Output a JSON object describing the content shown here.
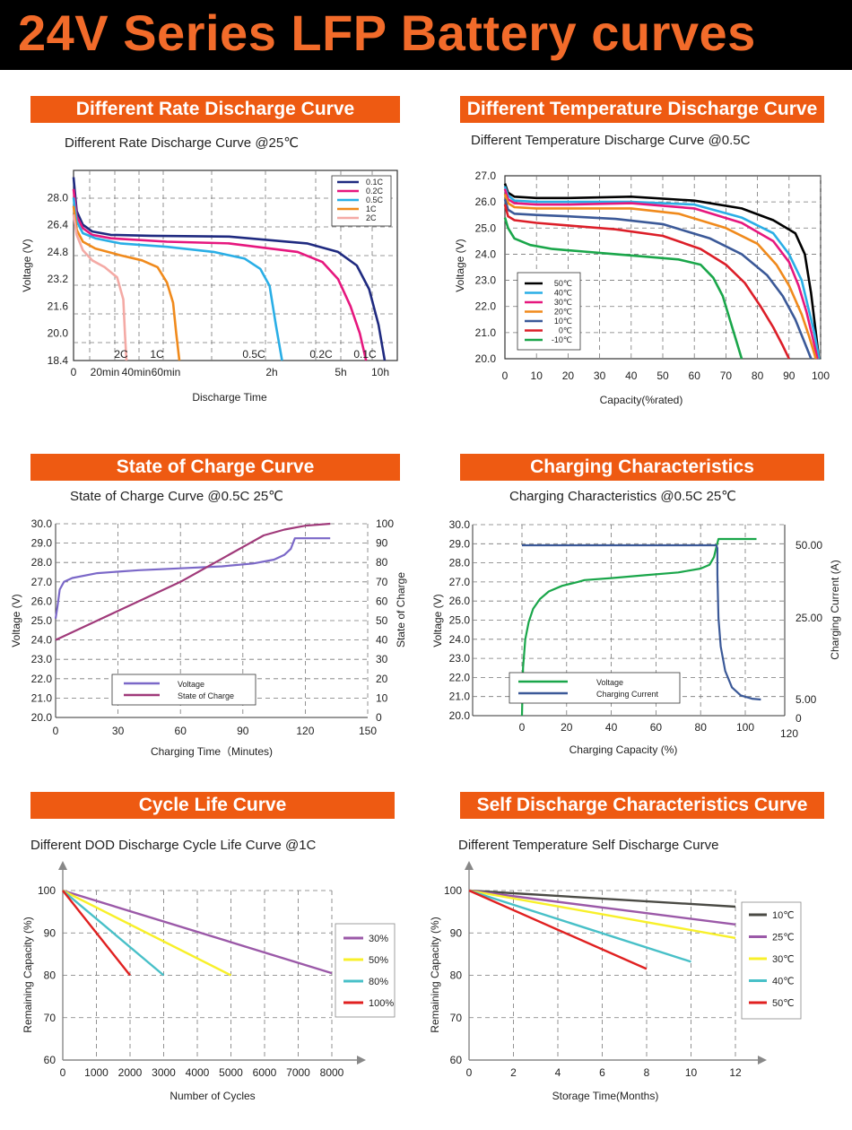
{
  "page_title": "24V Series LFP Battery curves",
  "chart_data": [
    {
      "id": "c1",
      "type": "line",
      "header": "Different Rate Discharge Curve",
      "title": "Different Rate Discharge Curve @25℃",
      "xlabel": "Discharge Time",
      "ylabel": "Voltage (V)",
      "ylim": [
        18.4,
        29.6
      ],
      "yticks": [
        "28.0",
        "26.4",
        "24.8",
        "23.2",
        "21.6",
        "20.0",
        "18.4"
      ],
      "xticks": [
        "0",
        "20min",
        "40min",
        "60min",
        "2h",
        "5h",
        "10h"
      ],
      "annotations": [
        "2C",
        "1C",
        "0.5C",
        "0.2C",
        "0.1C"
      ],
      "grid": true,
      "legend_position": "top-right",
      "series": [
        {
          "name": "0.1C",
          "color": "#1f2a80",
          "x": [
            0,
            0.01,
            0.03,
            0.06,
            0.12,
            0.25,
            0.5,
            0.75,
            0.85,
            0.91,
            0.95,
            0.98,
            1.0
          ],
          "y": [
            29.2,
            27.2,
            26.4,
            26.0,
            25.8,
            25.75,
            25.7,
            25.3,
            24.8,
            24.0,
            22.6,
            20.5,
            18.4
          ]
        },
        {
          "name": "0.2C",
          "color": "#e6177e",
          "x": [
            0,
            0.01,
            0.03,
            0.06,
            0.12,
            0.3,
            0.5,
            0.72,
            0.8,
            0.85,
            0.89,
            0.92,
            0.94
          ],
          "y": [
            28.5,
            26.9,
            26.2,
            25.8,
            25.6,
            25.4,
            25.3,
            24.8,
            24.2,
            23.2,
            21.6,
            20.0,
            18.4
          ]
        },
        {
          "name": "0.5C",
          "color": "#29aee6",
          "x": [
            0,
            0.01,
            0.03,
            0.07,
            0.15,
            0.3,
            0.45,
            0.55,
            0.6,
            0.63,
            0.65,
            0.67
          ],
          "y": [
            28.0,
            26.6,
            25.9,
            25.6,
            25.3,
            25.1,
            24.8,
            24.4,
            23.8,
            22.8,
            20.5,
            18.4
          ]
        },
        {
          "name": "1C",
          "color": "#f08a1c",
          "x": [
            0,
            0.01,
            0.03,
            0.07,
            0.15,
            0.22,
            0.27,
            0.3,
            0.32,
            0.33,
            0.34
          ],
          "y": [
            27.5,
            26.1,
            25.4,
            25.0,
            24.6,
            24.3,
            23.9,
            23.0,
            21.8,
            20.0,
            18.4
          ]
        },
        {
          "name": "2C",
          "color": "#f4aaa5",
          "x": [
            0,
            0.01,
            0.03,
            0.06,
            0.1,
            0.14,
            0.16,
            0.165,
            0.17
          ],
          "y": [
            27.0,
            25.8,
            24.9,
            24.3,
            23.9,
            23.3,
            22.0,
            20.0,
            18.4
          ]
        }
      ]
    },
    {
      "id": "c2",
      "type": "line",
      "header": "Different Temperature Discharge Curve",
      "title": "Different Temperature Discharge Curve @0.5C",
      "xlabel": "Capacity(%rated)",
      "ylabel": "Voltage (V)",
      "xlim": [
        0,
        100
      ],
      "ylim": [
        20.0,
        27.0
      ],
      "yticks": [
        "27.0",
        "26.0",
        "25.0",
        "24.0",
        "23.0",
        "22.0",
        "21.0",
        "20.0"
      ],
      "xticks": [
        "0",
        "10",
        "20",
        "30",
        "40",
        "50",
        "60",
        "70",
        "80",
        "90",
        "100"
      ],
      "grid": true,
      "legend_position": "bottom-left",
      "series": [
        {
          "name": "50℃",
          "color": "#000000",
          "x": [
            0,
            1,
            3,
            10,
            20,
            40,
            60,
            75,
            85,
            92,
            95,
            97,
            98.5,
            99.5
          ],
          "y": [
            26.7,
            26.35,
            26.2,
            26.15,
            26.15,
            26.2,
            26.05,
            25.75,
            25.3,
            24.8,
            24.0,
            22.5,
            21.0,
            20.0
          ]
        },
        {
          "name": "40℃",
          "color": "#29aee6",
          "x": [
            0,
            1,
            3,
            10,
            20,
            40,
            60,
            75,
            85,
            90,
            94,
            96,
            98,
            99.5
          ],
          "y": [
            26.6,
            26.25,
            26.05,
            26.0,
            26.0,
            26.0,
            25.9,
            25.4,
            24.8,
            24.0,
            23.0,
            22.0,
            21.0,
            20.0
          ]
        },
        {
          "name": "30℃",
          "color": "#e6177e",
          "x": [
            0,
            1,
            3,
            10,
            20,
            40,
            60,
            75,
            85,
            90,
            93,
            95.5,
            97.5,
            99
          ],
          "y": [
            26.5,
            26.1,
            25.95,
            25.9,
            25.9,
            25.95,
            25.75,
            25.2,
            24.5,
            23.7,
            22.8,
            21.8,
            20.8,
            20.0
          ]
        },
        {
          "name": "20℃",
          "color": "#f08a1c",
          "x": [
            0,
            1,
            3,
            10,
            20,
            40,
            55,
            70,
            80,
            86,
            90,
            94,
            96.5,
            98.5
          ],
          "y": [
            26.3,
            25.95,
            25.8,
            25.75,
            25.75,
            25.75,
            25.55,
            25.0,
            24.4,
            23.6,
            22.8,
            21.7,
            20.8,
            20.0
          ]
        },
        {
          "name": "10℃",
          "color": "#3b5998",
          "x": [
            0,
            1,
            3,
            10,
            20,
            35,
            50,
            65,
            75,
            83,
            88,
            92,
            95,
            97
          ],
          "y": [
            26.1,
            25.7,
            25.55,
            25.5,
            25.45,
            25.35,
            25.15,
            24.6,
            24.0,
            23.2,
            22.4,
            21.5,
            20.6,
            20.0
          ]
        },
        {
          "name": "0℃",
          "color": "#dc1e28",
          "x": [
            0,
            1,
            3,
            10,
            20,
            35,
            50,
            62,
            70,
            76,
            81,
            85,
            88,
            90
          ],
          "y": [
            25.9,
            25.45,
            25.3,
            25.2,
            25.1,
            24.95,
            24.7,
            24.2,
            23.6,
            22.9,
            22.0,
            21.2,
            20.5,
            20.0
          ]
        },
        {
          "name": "-10℃",
          "color": "#1aa64a",
          "x": [
            0,
            1,
            3,
            8,
            15,
            25,
            35,
            45,
            55,
            62,
            66,
            69,
            71,
            73,
            75
          ],
          "y": [
            25.4,
            25.0,
            24.6,
            24.35,
            24.2,
            24.1,
            24.0,
            23.9,
            23.8,
            23.6,
            23.1,
            22.4,
            21.6,
            20.8,
            20.0
          ]
        }
      ]
    },
    {
      "id": "c3",
      "type": "line",
      "header": "State of Charge Curve",
      "title": "State of Charge Curve @0.5C 25℃",
      "xlabel": "Charging Time（Minutes)",
      "ylabel": "Voltage (V)",
      "y2label": "State of Charge",
      "xlim": [
        0,
        150
      ],
      "ylim": [
        20.0,
        30.0
      ],
      "y2lim": [
        0,
        100
      ],
      "yticks": [
        "30.0",
        "29.0",
        "28.0",
        "27.0",
        "26.0",
        "25.0",
        "24.0",
        "23.0",
        "22.0",
        "21.0",
        "20.0"
      ],
      "y2ticks": [
        "100",
        "90",
        "80",
        "70",
        "60",
        "50",
        "40",
        "30",
        "20",
        "10",
        "0"
      ],
      "xticks": [
        "0",
        "30",
        "60",
        "90",
        "120",
        "150"
      ],
      "grid": true,
      "legend_position": "bottom-center",
      "series": [
        {
          "name": "Voltage",
          "color": "#7b68c8",
          "axis": "left",
          "x": [
            0,
            1,
            2,
            4,
            8,
            20,
            40,
            60,
            80,
            95,
            105,
            110,
            113,
            115,
            118,
            132
          ],
          "y": [
            25.1,
            25.8,
            26.6,
            27.0,
            27.2,
            27.45,
            27.6,
            27.7,
            27.8,
            27.95,
            28.15,
            28.4,
            28.7,
            29.25,
            29.25,
            29.25
          ]
        },
        {
          "name": "State of Charge",
          "color": "#a03a7a",
          "axis": "right",
          "x": [
            0,
            20,
            40,
            60,
            80,
            90,
            100,
            110,
            120,
            132
          ],
          "y": [
            40,
            50,
            60,
            70,
            82,
            88,
            94,
            97,
            99,
            100
          ]
        }
      ]
    },
    {
      "id": "c4",
      "type": "line",
      "header": "Charging Characteristics",
      "title": "Charging Characteristics @0.5C 25℃",
      "xlabel": "Charging Capacity (%)",
      "ylabel": "Voltage (V)",
      "y2label": "Charging Current (A)",
      "xlim": [
        -8,
        120
      ],
      "ylim": [
        20.0,
        30.0
      ],
      "yticks": [
        "30.0",
        "29.0",
        "28.0",
        "27.0",
        "26.0",
        "25.0",
        "24.0",
        "23.0",
        "22.0",
        "21.0",
        "20.0"
      ],
      "y2ticks": [
        "50.00",
        "25.00",
        "5.00",
        "0"
      ],
      "xticks": [
        "0",
        "20",
        "40",
        "60",
        "80",
        "100",
        "120"
      ],
      "grid": true,
      "legend_position": "bottom-center",
      "series": [
        {
          "name": "Voltage",
          "color": "#1aa64a",
          "axis": "left",
          "x": [
            0,
            0.5,
            1.5,
            3,
            5,
            8,
            12,
            18,
            25,
            28,
            40,
            55,
            70,
            80,
            84,
            86,
            87,
            88,
            90,
            105
          ],
          "y": [
            20.0,
            22.5,
            24.0,
            24.9,
            25.6,
            26.1,
            26.5,
            26.8,
            27.0,
            27.1,
            27.2,
            27.35,
            27.5,
            27.7,
            27.9,
            28.3,
            28.8,
            29.25,
            29.25,
            29.25
          ]
        },
        {
          "name": "Charging Current",
          "color": "#3b5998",
          "axis": "right",
          "x": [
            0,
            20,
            40,
            60,
            80,
            87,
            87.5,
            87.5,
            88,
            89,
            91,
            94,
            98,
            103,
            107
          ],
          "y": [
            50,
            50,
            50,
            50,
            50,
            50,
            49,
            40,
            25,
            18,
            12,
            8,
            6,
            5.2,
            5
          ]
        }
      ]
    },
    {
      "id": "c5",
      "type": "line",
      "header": "Cycle Life Curve",
      "title": "Different DOD Discharge Cycle Life Curve @1C",
      "xlabel": "Number of Cycles",
      "ylabel": "Remaining Capacity (%)",
      "xlim": [
        0,
        8000
      ],
      "ylim": [
        60,
        100
      ],
      "yticks": [
        "100",
        "90",
        "80",
        "70",
        "60"
      ],
      "xticks": [
        "0",
        "1000",
        "2000",
        "3000",
        "4000",
        "5000",
        "6000",
        "7000",
        "8000"
      ],
      "grid": true,
      "legend_position": "right",
      "series": [
        {
          "name": "30%",
          "color": "#9b59a8",
          "x": [
            0,
            8000
          ],
          "y": [
            100,
            80.5
          ]
        },
        {
          "name": "50%",
          "color": "#f8f02a",
          "x": [
            0,
            5000
          ],
          "y": [
            100,
            80
          ]
        },
        {
          "name": "80%",
          "color": "#48c0c8",
          "x": [
            0,
            3000
          ],
          "y": [
            100,
            80
          ]
        },
        {
          "name": "100%",
          "color": "#e02020",
          "x": [
            0,
            2000
          ],
          "y": [
            100,
            80
          ]
        }
      ]
    },
    {
      "id": "c6",
      "type": "line",
      "header": "Self Discharge Characteristics Curve",
      "title": "Different Temperature Self Discharge Curve",
      "xlabel": "Storage Time(Months)",
      "ylabel": "Remaining Capacity (%)",
      "xlim": [
        0,
        12
      ],
      "ylim": [
        60,
        100
      ],
      "yticks": [
        "100",
        "90",
        "80",
        "70",
        "60"
      ],
      "xticks": [
        "0",
        "2",
        "4",
        "6",
        "8",
        "10",
        "12"
      ],
      "grid": true,
      "legend_position": "right",
      "series": [
        {
          "name": "10℃",
          "color": "#4a4a44",
          "x": [
            0,
            12
          ],
          "y": [
            100,
            96.2
          ]
        },
        {
          "name": "25℃",
          "color": "#9b59a8",
          "x": [
            0,
            12
          ],
          "y": [
            100,
            92
          ]
        },
        {
          "name": "30℃",
          "color": "#f8f02a",
          "x": [
            0,
            12
          ],
          "y": [
            100,
            88.8
          ]
        },
        {
          "name": "40℃",
          "color": "#48c0c8",
          "x": [
            0,
            10
          ],
          "y": [
            100,
            83.2
          ]
        },
        {
          "name": "50℃",
          "color": "#e02020",
          "x": [
            0,
            8
          ],
          "y": [
            100,
            81.5
          ]
        }
      ]
    }
  ]
}
